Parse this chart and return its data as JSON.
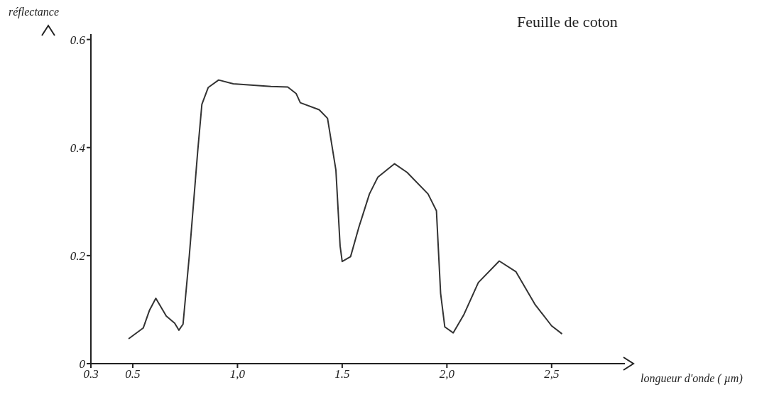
{
  "chart_data": {
    "type": "line",
    "title": "Feuille de coton",
    "xlabel": "longueur d'onde ( µm)",
    "ylabel": "réflectance",
    "xlim": [
      0.3,
      2.85
    ],
    "xticks": [
      0.3,
      0.5,
      {
        "value": 1.0,
        "label": "1,0"
      },
      1.5,
      {
        "value": 2.0,
        "label": "2,0"
      },
      {
        "value": 2.5,
        "label": "2,5"
      }
    ],
    "ylim": [
      0,
      0.61
    ],
    "yticks": [
      0,
      0.2,
      0.4,
      0.6
    ],
    "grid": false,
    "marker": "none",
    "line_style": "solid",
    "series": [
      {
        "color": "#333333",
        "x": [
          0.48,
          0.55,
          0.58,
          0.61,
          0.66,
          0.7,
          0.72,
          0.74,
          0.77,
          0.81,
          0.83,
          0.86,
          0.91,
          0.98,
          1.16,
          1.24,
          1.28,
          1.3,
          1.39,
          1.43,
          1.47,
          1.49,
          1.5,
          1.54,
          1.58,
          1.63,
          1.67,
          1.75,
          1.81,
          1.91,
          1.95,
          1.97,
          1.99,
          2.03,
          2.08,
          2.15,
          2.25,
          2.33,
          2.42,
          2.5,
          2.55
        ],
        "values": [
          0.046,
          0.066,
          0.099,
          0.121,
          0.088,
          0.075,
          0.062,
          0.073,
          0.2,
          0.393,
          0.48,
          0.511,
          0.525,
          0.518,
          0.513,
          0.512,
          0.5,
          0.483,
          0.47,
          0.454,
          0.358,
          0.218,
          0.189,
          0.198,
          0.253,
          0.314,
          0.345,
          0.37,
          0.354,
          0.314,
          0.283,
          0.13,
          0.068,
          0.057,
          0.09,
          0.15,
          0.19,
          0.17,
          0.11,
          0.07,
          0.055
        ]
      }
    ]
  }
}
